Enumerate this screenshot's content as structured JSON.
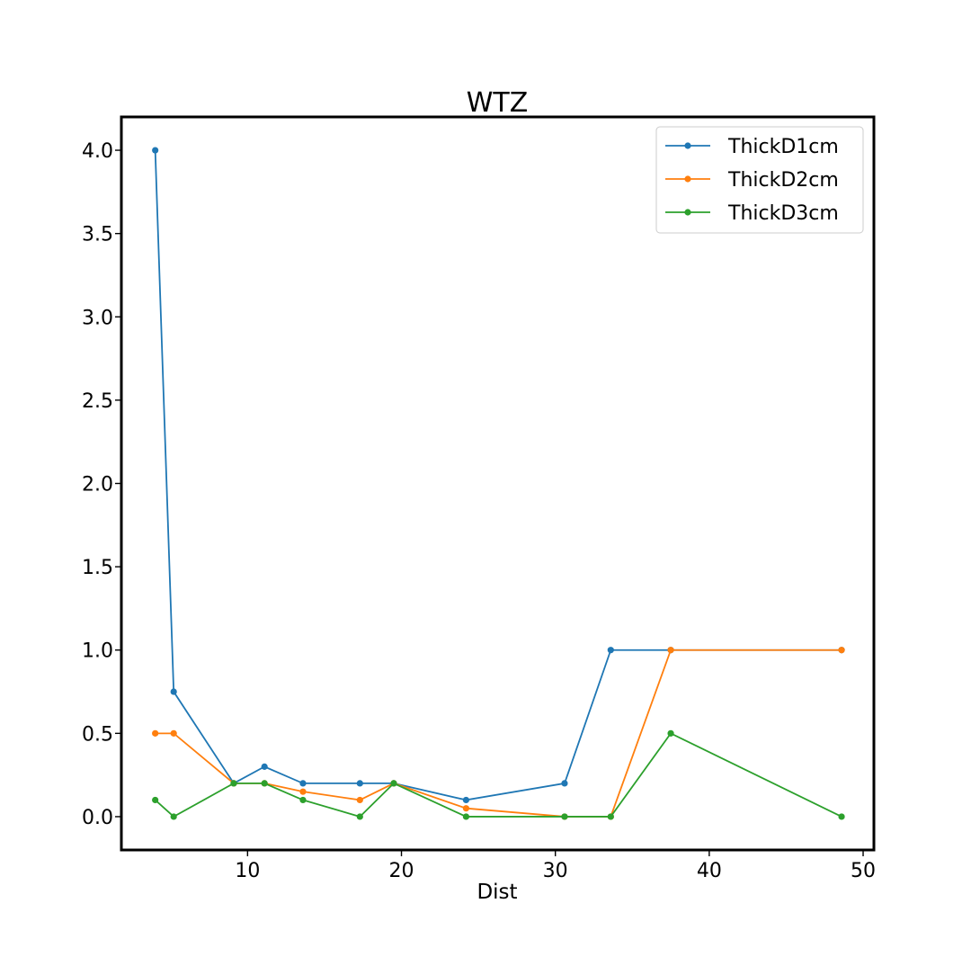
{
  "chart_data": {
    "type": "line",
    "title": "WTZ",
    "xlabel": "Dist",
    "ylabel": "",
    "xlim": [
      1.8,
      50.7
    ],
    "ylim": [
      -0.2,
      4.2
    ],
    "xticks": [
      10,
      20,
      30,
      40,
      50
    ],
    "yticks": [
      0.0,
      0.5,
      1.0,
      1.5,
      2.0,
      2.5,
      3.0,
      3.5,
      4.0
    ],
    "xtick_labels": [
      "10",
      "20",
      "30",
      "40",
      "50"
    ],
    "ytick_labels": [
      "0.0",
      "0.5",
      "1.0",
      "1.5",
      "2.0",
      "2.5",
      "3.0",
      "3.5",
      "4.0"
    ],
    "grid": false,
    "legend_position": "top-right",
    "x": [
      4.0,
      5.2,
      9.1,
      11.1,
      13.6,
      17.3,
      19.5,
      24.2,
      30.6,
      33.6,
      37.5,
      48.6
    ],
    "series": [
      {
        "name": "ThickD1cm",
        "color": "#1f77b4",
        "values": [
          4.0,
          0.75,
          0.2,
          0.3,
          0.2,
          0.2,
          0.2,
          0.1,
          0.2,
          1.0,
          1.0,
          1.0
        ]
      },
      {
        "name": "ThickD2cm",
        "color": "#ff7f0e",
        "values": [
          0.5,
          0.5,
          0.2,
          0.2,
          0.15,
          0.1,
          0.2,
          0.05,
          0.0,
          0.0,
          1.0,
          1.0
        ]
      },
      {
        "name": "ThickD3cm",
        "color": "#2ca02c",
        "values": [
          0.1,
          0.0,
          0.2,
          0.2,
          0.1,
          0.0,
          0.2,
          0.0,
          0.0,
          0.0,
          0.5,
          0.0
        ]
      }
    ]
  }
}
